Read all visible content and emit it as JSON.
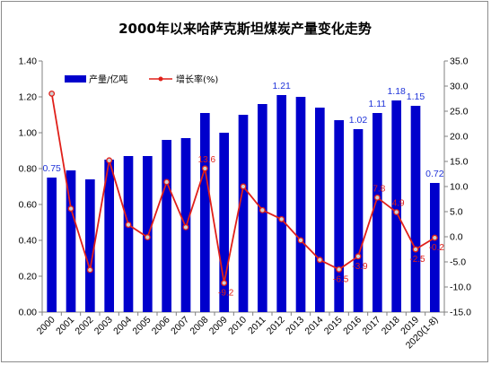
{
  "chart_data": {
    "type": "bar",
    "title": "2000年以来哈萨克斯坦煤炭产量变化走势",
    "categories": [
      "2000",
      "2001",
      "2002",
      "2003",
      "2004",
      "2005",
      "2006",
      "2007",
      "2008",
      "2009",
      "2010",
      "2011",
      "2012",
      "2013",
      "2014",
      "2015",
      "2016",
      "2017",
      "2018",
      "2019",
      "2020(1-8)"
    ],
    "series": [
      {
        "name": "产量/亿吨",
        "type": "bar",
        "axis": "left",
        "color": "#0000cc",
        "values": [
          0.75,
          0.79,
          0.74,
          0.85,
          0.87,
          0.87,
          0.96,
          0.97,
          1.11,
          1.0,
          1.1,
          1.16,
          1.21,
          1.2,
          1.14,
          1.07,
          1.02,
          1.11,
          1.18,
          1.15,
          0.72
        ]
      },
      {
        "name": "增长率(%)",
        "type": "line",
        "axis": "right",
        "color": "#e0201a",
        "values": [
          28.5,
          5.6,
          -6.6,
          15.2,
          2.4,
          -0.1,
          10.9,
          1.9,
          13.6,
          -9.2,
          10.0,
          5.3,
          3.5,
          -0.7,
          -4.6,
          -6.5,
          -3.9,
          7.8,
          4.9,
          -2.5,
          -0.2
        ]
      }
    ],
    "bar_data_labels": [
      {
        "index": 0,
        "text": "0.75"
      },
      {
        "index": 12,
        "text": "1.21"
      },
      {
        "index": 16,
        "text": "1.02"
      },
      {
        "index": 17,
        "text": "1.11"
      },
      {
        "index": 18,
        "text": "1.18"
      },
      {
        "index": 19,
        "text": "1.15"
      },
      {
        "index": 20,
        "text": "0.72"
      }
    ],
    "line_data_labels": [
      {
        "index": 8,
        "text": "13.6"
      },
      {
        "index": 9,
        "text": "-9.2"
      },
      {
        "index": 15,
        "text": "-6.5"
      },
      {
        "index": 16,
        "text": "-3.9"
      },
      {
        "index": 17,
        "text": "7.8"
      },
      {
        "index": 18,
        "text": "4.9"
      },
      {
        "index": 19,
        "text": "-2.5"
      },
      {
        "index": 20,
        "text": "-0.2"
      }
    ],
    "ylim_left": [
      0,
      1.4
    ],
    "yticks_left": [
      "0.00",
      "0.20",
      "0.40",
      "0.60",
      "0.80",
      "1.00",
      "1.20",
      "1.40"
    ],
    "ylim_right": [
      -15,
      35
    ],
    "yticks_right": [
      "-15.0",
      "-10.0",
      "-5.0",
      "0.0",
      "5.0",
      "10.0",
      "15.0",
      "20.0",
      "25.0",
      "30.0",
      "35.0"
    ],
    "xlabel": "",
    "ylabel": "",
    "grid": false,
    "legend_position": "top-left"
  }
}
